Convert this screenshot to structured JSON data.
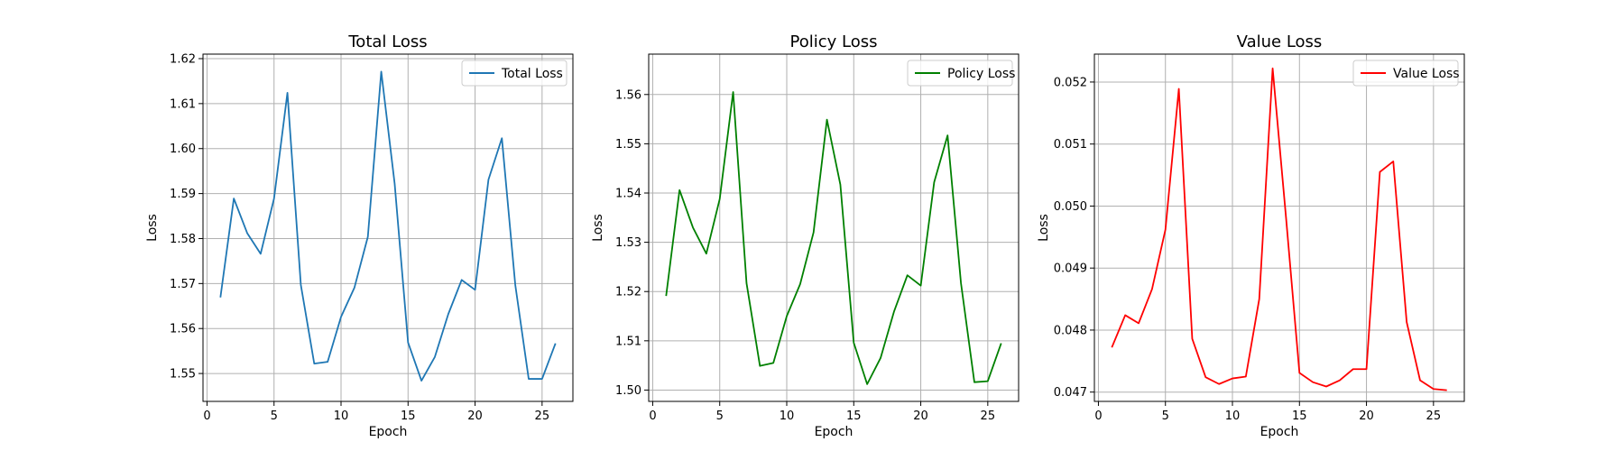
{
  "chart_data": [
    {
      "type": "line",
      "title": "Total Loss",
      "xlabel": "Epoch",
      "ylabel": "Loss",
      "xlim": [
        -0.3,
        27.3
      ],
      "ylim": [
        1.5438,
        1.621
      ],
      "xticks": [
        0,
        5,
        10,
        15,
        20,
        25
      ],
      "yticks": [
        1.55,
        1.56,
        1.57,
        1.58,
        1.59,
        1.6,
        1.61,
        1.62
      ],
      "ytick_labels": [
        "1.55",
        "1.56",
        "1.57",
        "1.58",
        "1.59",
        "1.60",
        "1.61",
        "1.62"
      ],
      "grid": true,
      "legend_position": "top-right",
      "x": [
        1,
        2,
        3,
        4,
        5,
        6,
        7,
        8,
        9,
        10,
        11,
        12,
        13,
        14,
        15,
        16,
        17,
        18,
        19,
        20,
        21,
        22,
        23,
        24,
        25,
        26
      ],
      "series": [
        {
          "name": "Total Loss",
          "color": "#1f77b4",
          "values": [
            1.5669,
            1.5889,
            1.5812,
            1.5766,
            1.5889,
            1.6124,
            1.5697,
            1.5522,
            1.5526,
            1.5626,
            1.5691,
            1.5804,
            1.6171,
            1.5922,
            1.5569,
            1.5484,
            1.5537,
            1.5632,
            1.5708,
            1.5686,
            1.5931,
            1.6023,
            1.5697,
            1.5488,
            1.5488,
            1.5567
          ]
        }
      ]
    },
    {
      "type": "line",
      "title": "Policy Loss",
      "xlabel": "Epoch",
      "ylabel": "Loss",
      "xlim": [
        -0.3,
        27.3
      ],
      "ylim": [
        1.4977,
        1.5682
      ],
      "xticks": [
        0,
        5,
        10,
        15,
        20,
        25
      ],
      "yticks": [
        1.5,
        1.51,
        1.52,
        1.53,
        1.54,
        1.55,
        1.56
      ],
      "ytick_labels": [
        "1.50",
        "1.51",
        "1.52",
        "1.53",
        "1.54",
        "1.55",
        "1.56"
      ],
      "grid": true,
      "legend_position": "top-right",
      "x": [
        1,
        2,
        3,
        4,
        5,
        6,
        7,
        8,
        9,
        10,
        11,
        12,
        13,
        14,
        15,
        16,
        17,
        18,
        19,
        20,
        21,
        22,
        23,
        24,
        25,
        26
      ],
      "series": [
        {
          "name": "Policy Loss",
          "color": "#008000",
          "values": [
            1.5191,
            1.5406,
            1.533,
            1.5277,
            1.5388,
            1.5605,
            1.5217,
            1.5049,
            1.5055,
            1.515,
            1.5215,
            1.532,
            1.5549,
            1.5417,
            1.5096,
            1.5012,
            1.5065,
            1.5159,
            1.5233,
            1.5212,
            1.5422,
            1.5517,
            1.5217,
            1.5016,
            1.5018,
            1.5095
          ]
        }
      ]
    },
    {
      "type": "line",
      "title": "Value Loss",
      "xlabel": "Epoch",
      "ylabel": "Loss",
      "xlim": [
        -0.3,
        27.3
      ],
      "ylim": [
        0.04685,
        0.05245
      ],
      "xticks": [
        0,
        5,
        10,
        15,
        20,
        25
      ],
      "yticks": [
        0.047,
        0.048,
        0.049,
        0.05,
        0.051,
        0.052
      ],
      "ytick_labels": [
        "0.047",
        "0.048",
        "0.049",
        "0.050",
        "0.051",
        "0.052"
      ],
      "grid": true,
      "legend_position": "top-right",
      "x": [
        1,
        2,
        3,
        4,
        5,
        6,
        7,
        8,
        9,
        10,
        11,
        12,
        13,
        14,
        15,
        16,
        17,
        18,
        19,
        20,
        21,
        22,
        23,
        24,
        25,
        26
      ],
      "series": [
        {
          "name": "Value Loss",
          "color": "#ff0000",
          "values": [
            0.04772,
            0.04824,
            0.04811,
            0.04866,
            0.04962,
            0.05189,
            0.04786,
            0.04724,
            0.04713,
            0.04722,
            0.04725,
            0.0485,
            0.05222,
            0.04981,
            0.04731,
            0.04716,
            0.04709,
            0.04719,
            0.04737,
            0.04737,
            0.05055,
            0.05072,
            0.04813,
            0.04719,
            0.04705,
            0.04703
          ]
        }
      ]
    }
  ]
}
